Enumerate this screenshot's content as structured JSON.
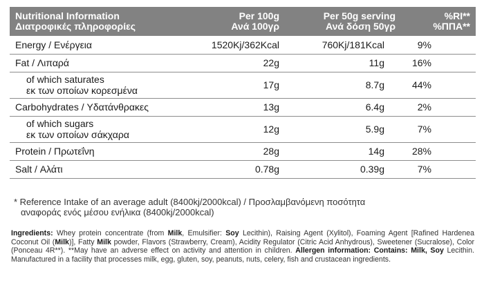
{
  "header": {
    "col1_en": "Nutritional Information",
    "col1_gr": "Διατροφικές πληροφορίες",
    "col2_en": "Per 100g",
    "col2_gr": "Ανά 100γρ",
    "col3_en": "Per 50g serving",
    "col3_gr": "Ανά δόση 50γρ",
    "col4_en": "%RI**",
    "col4_gr": "%ΠΠΑ**"
  },
  "rows": [
    {
      "name": "Energy / Ενέργεια",
      "per100": "1520Kj/362Kcal",
      "per50": "760Kj/181Kcal",
      "ri": "9%"
    },
    {
      "name": "Fat / Λιπαρά",
      "per100": "22g",
      "per50": "11g",
      "ri": "16%"
    },
    {
      "name_en": "of which saturates",
      "name_gr": "εκ των οποίων κορεσμένα",
      "per100": "17g",
      "per50": "8.7g",
      "ri": "44%"
    },
    {
      "name": "Carbohydrates / Υδατάνθρακες",
      "per100": "13g",
      "per50": "6.4g",
      "ri": "2%"
    },
    {
      "name_en": "of which sugars",
      "name_gr": "εκ των οποίων σάκχαρα",
      "per100": "12g",
      "per50": "5.9g",
      "ri": "7%"
    },
    {
      "name": "Protein / Πρωτεΐνη",
      "per100": "28g",
      "per50": "14g",
      "ri": "28%"
    },
    {
      "name": "Salt / Αλάτι",
      "per100": "0.78g",
      "per50": "0.39g",
      "ri": "7%"
    }
  ],
  "reference": {
    "line1": "* Reference Intake of an average adult (8400kj/2000kcal) / Προσλαμβανόμενη ποσότητα",
    "line2": "αναφοράς ενός μέσου ενήλικα (8400kj/2000kcal)"
  },
  "ingredients": {
    "label": "Ingredients:",
    "t1": " Whey protein concentrate (from ",
    "milk1": "Milk",
    "t2": ", Emulsifier: ",
    "soy1": "Soy",
    "t3": " Lecithin), Raising Agent (Xylitol), Foaming Agent [Rafined Hardenea Coconut Oil (",
    "milk2": "Milk",
    "t4": ")], Fatty ",
    "milk3": "Milk",
    "t5": " powder, Flavors (Strawberry, Cream), Acidity Regulator (Citric Acid Anhydrous), Sweetener (Sucralose), Color (Ponceau 4R**). **May have an adverse effect on activity and attention in children.",
    "allergen_label": "Allergen information: Contains: Milk, Soy",
    "allergen_text": " Lecithin. Manufactured in a facility that processes milk, egg, gluten, soy, peanuts, nuts, celery, fish and crustacean ingredients."
  }
}
